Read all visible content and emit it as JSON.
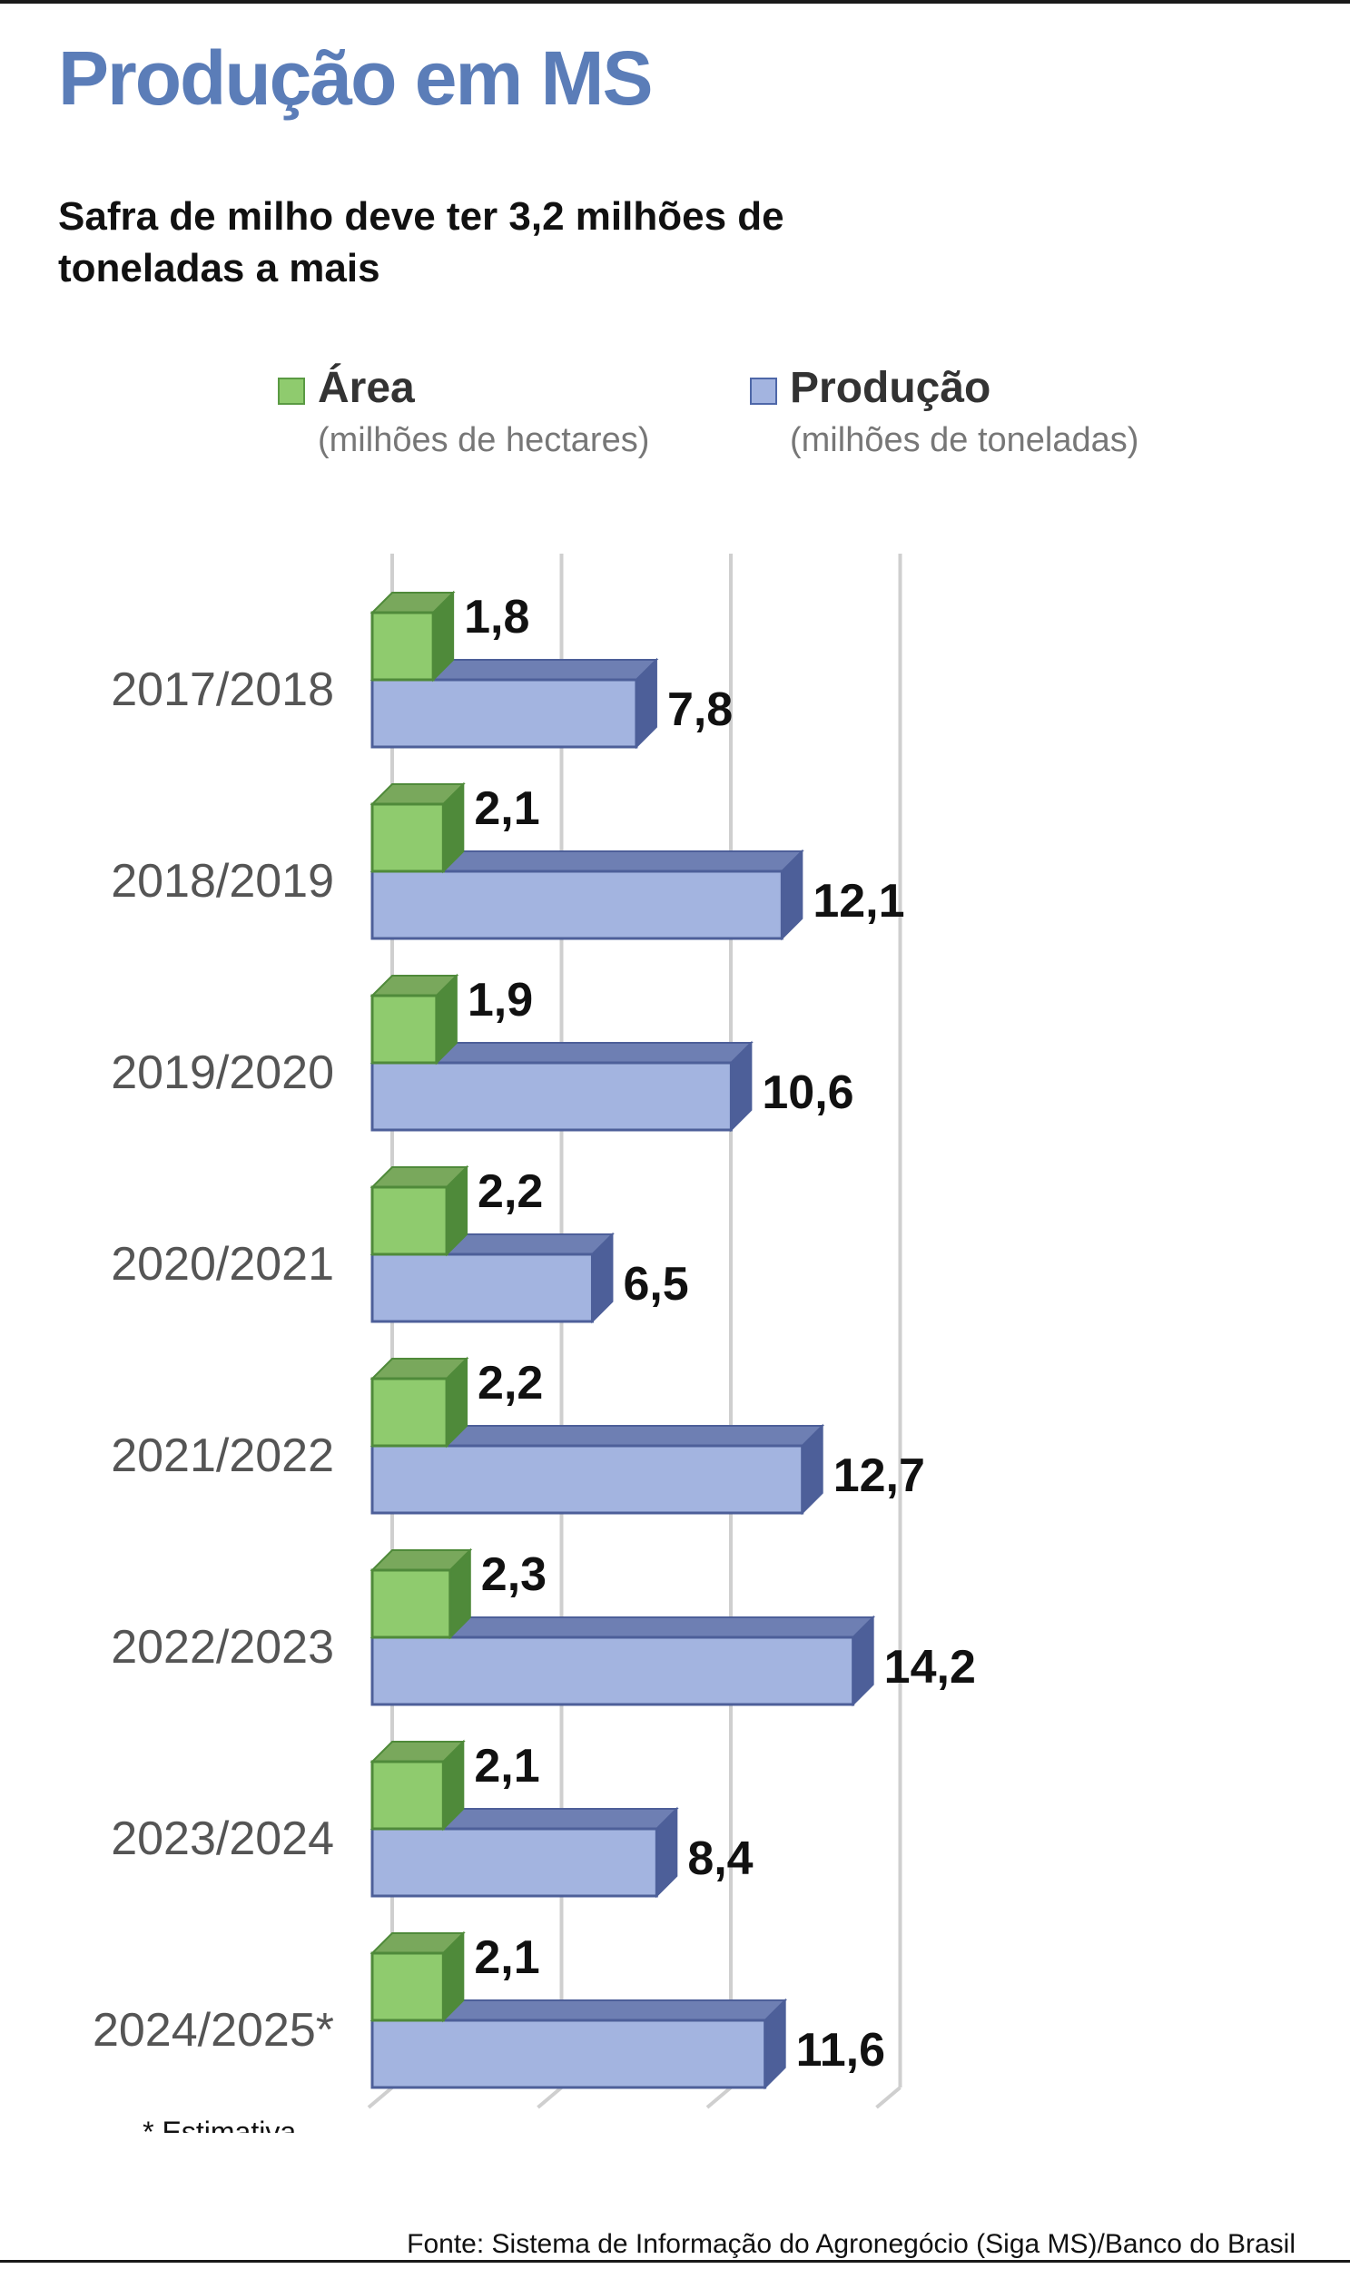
{
  "title": "Produção em MS",
  "subtitle": "Safra de milho deve ter 3,2 milhões de toneladas a mais",
  "legend": [
    {
      "name": "Área",
      "unit": "(milhões de hectares)",
      "color": "#8fcb6e",
      "border": "#5a9a43"
    },
    {
      "name": "Produção",
      "unit": "(milhões de toneladas)",
      "color": "#a3b4e0",
      "border": "#4e67a8"
    }
  ],
  "footnote": "* Estimativa.",
  "source": "Fonte: Sistema de Informação do Agronegócio (Siga MS)/Banco do Brasil",
  "colors": {
    "title": "#5b7db8",
    "area_front": "#8fcb6e",
    "area_top": "#79a85c",
    "area_side": "#4f8a3a",
    "prod_front": "#a3b4e0",
    "prod_top": "#6e7fb3",
    "prod_side": "#4d5f99",
    "grid": "#cfcfcf"
  },
  "chart_data": {
    "type": "bar",
    "orientation": "horizontal",
    "style": "3d",
    "categories": [
      "2017/2018",
      "2018/2019",
      "2019/2020",
      "2020/2021",
      "2021/2022",
      "2022/2023",
      "2023/2024",
      "2024/2025*"
    ],
    "series": [
      {
        "name": "Área",
        "unit": "(milhões de hectares)",
        "values": [
          1.8,
          2.1,
          1.9,
          2.2,
          2.2,
          2.3,
          2.1,
          2.1
        ],
        "labels": [
          "1,8",
          "2,1",
          "1,9",
          "2,2",
          "2,2",
          "2,3",
          "2,1",
          "2,1"
        ]
      },
      {
        "name": "Produção",
        "unit": "(milhões de toneladas)",
        "values": [
          7.8,
          12.1,
          10.6,
          6.5,
          12.7,
          14.2,
          8.4,
          11.6
        ],
        "labels": [
          "7,8",
          "12,1",
          "10,6",
          "6,5",
          "12,7",
          "14,2",
          "8,4",
          "11,6"
        ]
      }
    ],
    "xlim": [
      0,
      16
    ],
    "grid": true,
    "axis_labels_shown": false,
    "legend_position": "top"
  }
}
